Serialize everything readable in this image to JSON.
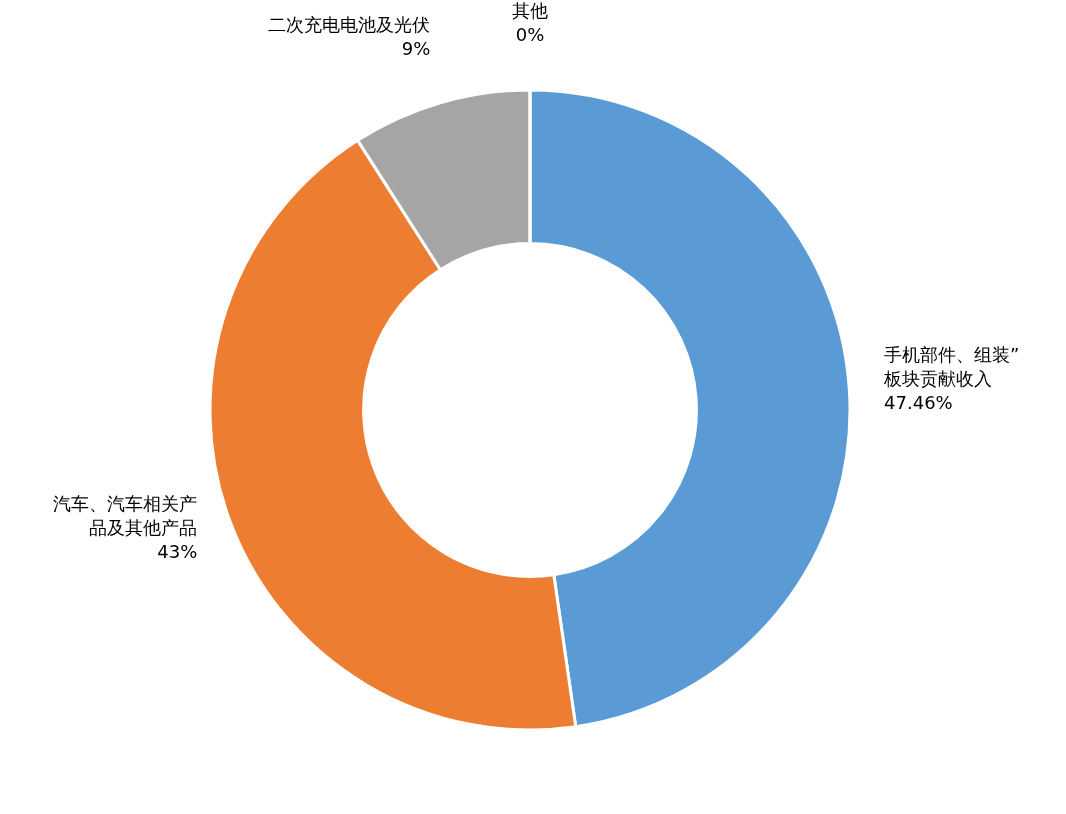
{
  "chart_data": {
    "type": "donut",
    "categories": [
      "手机部件、组装”板块贡献收入",
      "汽车、汽车相关产品及其他产品",
      "二次充电电池及光伏",
      "其他"
    ],
    "values": [
      47.46,
      43,
      9,
      0
    ],
    "value_labels": [
      "47.46%",
      "43%",
      "9%",
      "0%"
    ],
    "colors": [
      "#5b9bd5",
      "#ed7d31",
      "#a5a5a5",
      "#ffc000"
    ]
  }
}
